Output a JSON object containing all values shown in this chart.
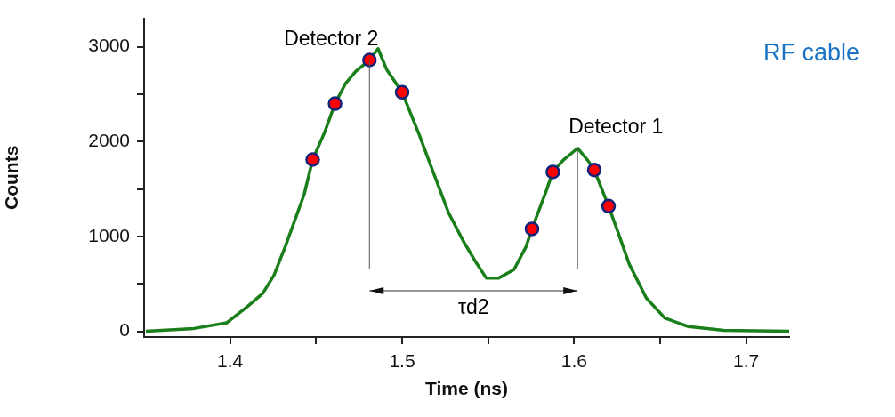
{
  "chart_data": {
    "type": "line",
    "xlabel": "Time (ns)",
    "ylabel": "Counts",
    "xlim": [
      1.35,
      1.725
    ],
    "ylim": [
      -60,
      3300
    ],
    "xticks": [
      1.4,
      {
        "value": 1.45,
        "label": null
      },
      1.5,
      {
        "value": 1.55,
        "label": null
      },
      1.6,
      {
        "value": 1.65,
        "label": null
      },
      1.7
    ],
    "yticks": [
      0,
      {
        "value": 500,
        "label": null
      },
      1000,
      {
        "value": 1500,
        "label": null
      },
      2000,
      {
        "value": 2500,
        "label": null
      },
      3000
    ],
    "grid": false,
    "legend": false,
    "line_style": "solid",
    "series": [
      {
        "color": "#1a7f1a",
        "marker": "none",
        "x": [
          1.351,
          1.379,
          1.398,
          1.41,
          1.419,
          1.4255,
          1.432,
          1.438,
          1.443,
          1.448,
          1.455,
          1.461,
          1.467,
          1.473,
          1.481,
          1.486,
          1.491,
          1.5,
          1.51,
          1.517,
          1.527,
          1.5356,
          1.5425,
          1.549,
          1.556,
          1.565,
          1.572,
          1.5755,
          1.584,
          1.5876,
          1.594,
          1.602,
          1.608,
          1.6117,
          1.62,
          1.625,
          1.632,
          1.642,
          1.6527,
          1.6664,
          1.687,
          1.725
        ],
        "values": [
          0,
          30,
          90,
          260,
          400,
          590,
          890,
          1190,
          1440,
          1810,
          2100,
          2400,
          2610,
          2740,
          2860,
          2980,
          2760,
          2520,
          2070,
          1730,
          1250,
          950,
          740,
          560,
          560,
          650,
          890,
          1080,
          1490,
          1680,
          1810,
          1930,
          1800,
          1700,
          1320,
          1070,
          710,
          350,
          140,
          50,
          10,
          0
        ]
      },
      {
        "type": "scatter",
        "color": "#ff0000",
        "marker": "circle",
        "x": [
          1.448,
          1.461,
          1.481,
          1.5,
          1.5755,
          1.5876,
          1.6117,
          1.62
        ],
        "values": [
          1810,
          2400,
          2860,
          2520,
          1080,
          1680,
          1700,
          1320
        ]
      }
    ],
    "annotations": [
      {
        "text": "Detector 2",
        "x": 1.481,
        "y": 2860
      },
      {
        "text": "Detector 1",
        "x": 1.602,
        "y": 1930
      },
      "τd2",
      "RF cable"
    ]
  }
}
